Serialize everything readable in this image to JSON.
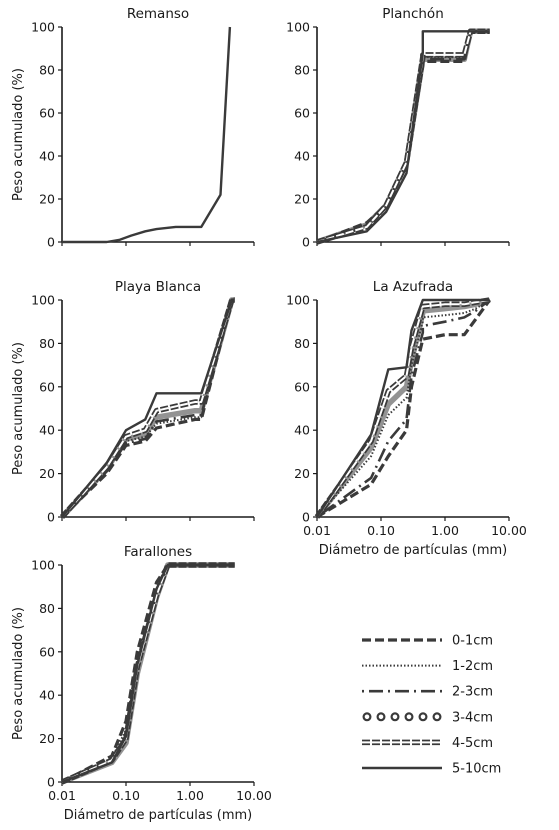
{
  "chart_data": [
    {
      "type": "line",
      "title": "Remanso",
      "ylabel": "Peso acumulado (%)",
      "xlabel": "",
      "x_scale": "log",
      "xlim": [
        0.01,
        10
      ],
      "ylim": [
        0,
        100
      ],
      "yticks": [
        "0",
        "20",
        "40",
        "60",
        "80",
        "100"
      ],
      "xticks": [],
      "series": [
        {
          "style": "5-10cm",
          "x": [
            0.01,
            0.05,
            0.08,
            0.12,
            0.2,
            0.3,
            0.6,
            1.5,
            3.0,
            4.2
          ],
          "y": [
            0,
            0,
            1,
            3,
            5,
            6,
            7,
            7,
            22,
            100
          ]
        }
      ]
    },
    {
      "type": "line",
      "title": "Planchón",
      "ylabel": "",
      "xlabel": "",
      "x_scale": "log",
      "xlim": [
        0.01,
        10
      ],
      "ylim": [
        0,
        100
      ],
      "yticks": [
        "0",
        "20",
        "40",
        "60",
        "80",
        "100"
      ],
      "xticks": [],
      "series": [
        {
          "style": "0-1cm",
          "x": [
            0.01,
            0.06,
            0.12,
            0.25,
            0.45,
            0.45,
            2.0,
            2.5,
            5.0
          ],
          "y": [
            0,
            9,
            17,
            36,
            82,
            84,
            84,
            98,
            98
          ]
        },
        {
          "style": "1-2cm",
          "x": [
            0.01,
            0.06,
            0.12,
            0.25,
            0.45,
            0.45,
            2.0,
            2.5,
            5.0
          ],
          "y": [
            0,
            8,
            18,
            38,
            86,
            86,
            86,
            98,
            98
          ]
        },
        {
          "style": "2-3cm",
          "x": [
            0.01,
            0.06,
            0.12,
            0.25,
            0.45,
            0.45,
            2.0,
            2.5,
            5.0
          ],
          "y": [
            0,
            7,
            16,
            35,
            84,
            85,
            85,
            98,
            98
          ]
        },
        {
          "style": "3-4cm",
          "x": [
            0.01,
            0.06,
            0.12,
            0.25,
            0.45,
            0.45,
            2.0,
            2.5,
            5.0
          ],
          "y": [
            0,
            8,
            17,
            37,
            85,
            85,
            85,
            98,
            98
          ]
        },
        {
          "style": "4-5cm",
          "x": [
            0.01,
            0.06,
            0.12,
            0.25,
            0.45,
            0.45,
            2.0,
            2.5,
            5.0
          ],
          "y": [
            0,
            7,
            17,
            37,
            86,
            87,
            87,
            98,
            98
          ]
        },
        {
          "style": "5-10cm",
          "x": [
            0.01,
            0.06,
            0.12,
            0.25,
            0.45,
            0.45,
            2.0,
            2.5,
            5.0
          ],
          "y": [
            0,
            5,
            14,
            32,
            88,
            98,
            98,
            98,
            98
          ]
        }
      ]
    },
    {
      "type": "line",
      "title": "Playa Blanca",
      "ylabel": "Peso acumulado (%)",
      "xlabel": "",
      "x_scale": "log",
      "xlim": [
        0.01,
        10
      ],
      "ylim": [
        0,
        100
      ],
      "yticks": [
        "0",
        "20",
        "40",
        "60",
        "80",
        "100"
      ],
      "xticks": [],
      "series": [
        {
          "style": "0-1cm",
          "x": [
            0.01,
            0.05,
            0.1,
            0.2,
            0.3,
            1.2,
            1.5,
            4.5,
            5.0
          ],
          "y": [
            0,
            20,
            33,
            35,
            41,
            45,
            45,
            100,
            100
          ]
        },
        {
          "style": "1-2cm",
          "x": [
            0.01,
            0.05,
            0.1,
            0.2,
            0.3,
            1.2,
            1.5,
            4.5,
            5.0
          ],
          "y": [
            0,
            21,
            35,
            37,
            43,
            46,
            46,
            100,
            100
          ]
        },
        {
          "style": "2-3cm",
          "x": [
            0.01,
            0.05,
            0.1,
            0.2,
            0.3,
            1.2,
            1.5,
            4.5,
            5.0
          ],
          "y": [
            0,
            21,
            34,
            36,
            44,
            47,
            47,
            100,
            100
          ]
        },
        {
          "style": "3-4cm",
          "x": [
            0.01,
            0.05,
            0.1,
            0.2,
            0.3,
            1.2,
            1.5,
            4.5,
            5.0
          ],
          "y": [
            0,
            22,
            36,
            38,
            46,
            49,
            49,
            100,
            100
          ]
        },
        {
          "style": "4-5cm",
          "x": [
            0.01,
            0.05,
            0.1,
            0.2,
            0.3,
            1.2,
            1.5,
            4.5,
            5.0
          ],
          "y": [
            0,
            23,
            37,
            40,
            49,
            53,
            53,
            100,
            100
          ]
        },
        {
          "style": "5-10cm",
          "x": [
            0.01,
            0.05,
            0.1,
            0.2,
            0.3,
            1.2,
            1.5,
            4.5,
            5.0
          ],
          "y": [
            0,
            25,
            40,
            45,
            57,
            57,
            57,
            100,
            100
          ]
        }
      ]
    },
    {
      "type": "line",
      "title": "La Azufrada",
      "ylabel": "",
      "xlabel": "Diámetro de partículas (mm)",
      "x_scale": "log",
      "xlim": [
        0.01,
        10
      ],
      "ylim": [
        0,
        100
      ],
      "yticks": [
        "0",
        "20",
        "40",
        "60",
        "80",
        "100"
      ],
      "xticks": [
        "0.01",
        "0.10",
        "1.00",
        "10.00"
      ],
      "series": [
        {
          "style": "0-1cm",
          "x": [
            0.01,
            0.07,
            0.13,
            0.25,
            0.3,
            0.45,
            0.45,
            1.0,
            2.0,
            3.0,
            5.0
          ],
          "y": [
            0,
            15,
            28,
            40,
            60,
            82,
            82,
            84,
            84,
            91,
            100
          ]
        },
        {
          "style": "1-2cm",
          "x": [
            0.01,
            0.07,
            0.13,
            0.25,
            0.3,
            0.45,
            0.45,
            1.0,
            2.0,
            3.0,
            5.0
          ],
          "y": [
            0,
            28,
            47,
            55,
            70,
            90,
            92,
            93,
            94,
            96,
            100
          ]
        },
        {
          "style": "2-3cm",
          "x": [
            0.01,
            0.07,
            0.13,
            0.25,
            0.3,
            0.45,
            0.45,
            1.0,
            2.0,
            3.0,
            5.0
          ],
          "y": [
            0,
            18,
            35,
            45,
            65,
            85,
            88,
            90,
            92,
            95,
            100
          ]
        },
        {
          "style": "3-4cm",
          "x": [
            0.01,
            0.07,
            0.13,
            0.25,
            0.3,
            0.45,
            0.45,
            1.0,
            2.0,
            3.0,
            5.0
          ],
          "y": [
            0,
            32,
            52,
            60,
            72,
            94,
            95,
            96,
            97,
            98,
            100
          ]
        },
        {
          "style": "4-5cm",
          "x": [
            0.01,
            0.07,
            0.13,
            0.25,
            0.3,
            0.45,
            0.45,
            1.0,
            2.0,
            3.0,
            5.0
          ],
          "y": [
            0,
            35,
            58,
            65,
            78,
            97,
            97,
            98,
            98,
            99,
            100
          ]
        },
        {
          "style": "5-10cm",
          "x": [
            0.01,
            0.07,
            0.13,
            0.25,
            0.3,
            0.45,
            0.45,
            1.0,
            2.0,
            3.0,
            5.0
          ],
          "y": [
            0,
            38,
            68,
            69,
            86,
            100,
            100,
            100,
            100,
            100,
            100
          ]
        }
      ]
    },
    {
      "type": "line",
      "title": "Farallones",
      "ylabel": "Peso acumulado (%)",
      "xlabel": "Diámetro de partículas (mm)",
      "x_scale": "log",
      "xlim": [
        0.01,
        10
      ],
      "ylim": [
        0,
        100
      ],
      "yticks": [
        "0",
        "20",
        "40",
        "60",
        "80",
        "100"
      ],
      "xticks": [
        "0.01",
        "0.10",
        "1.00",
        "10.00"
      ],
      "series": [
        {
          "style": "0-1cm",
          "x": [
            0.01,
            0.06,
            0.1,
            0.15,
            0.3,
            0.45,
            1.0,
            5.0
          ],
          "y": [
            0,
            12,
            28,
            60,
            92,
            100,
            100,
            100
          ]
        },
        {
          "style": "1-2cm",
          "x": [
            0.01,
            0.06,
            0.1,
            0.15,
            0.3,
            0.45,
            1.0,
            5.0
          ],
          "y": [
            0,
            11,
            24,
            56,
            88,
            100,
            100,
            100
          ]
        },
        {
          "style": "2-3cm",
          "x": [
            0.01,
            0.06,
            0.1,
            0.15,
            0.3,
            0.45,
            1.0,
            5.0
          ],
          "y": [
            0,
            10,
            22,
            55,
            87,
            100,
            100,
            100
          ]
        },
        {
          "style": "3-4cm",
          "x": [
            0.01,
            0.06,
            0.1,
            0.15,
            0.3,
            0.45,
            1.0,
            5.0
          ],
          "y": [
            0,
            9,
            18,
            50,
            85,
            100,
            100,
            100
          ]
        },
        {
          "style": "4-5cm",
          "x": [
            0.01,
            0.06,
            0.1,
            0.15,
            0.3,
            0.45,
            1.0,
            5.0
          ],
          "y": [
            0,
            10,
            20,
            53,
            86,
            100,
            100,
            100
          ]
        },
        {
          "style": "5-10cm",
          "x": [
            0.01,
            0.06,
            0.1,
            0.15,
            0.3,
            0.45,
            1.0,
            5.0
          ],
          "y": [
            0,
            9,
            21,
            54,
            89,
            100,
            100,
            100
          ]
        }
      ]
    }
  ],
  "legend": {
    "placement": "bottom-right",
    "items": [
      {
        "label": "0-1cm"
      },
      {
        "label": "1-2cm"
      },
      {
        "label": "2-3cm"
      },
      {
        "label": "3-4cm"
      },
      {
        "label": "4-5cm"
      },
      {
        "label": "5-10cm"
      }
    ]
  },
  "colors": {
    "line": "#3a3a3a",
    "axis": "#1a1a1a",
    "text": "#1a1a1a"
  }
}
